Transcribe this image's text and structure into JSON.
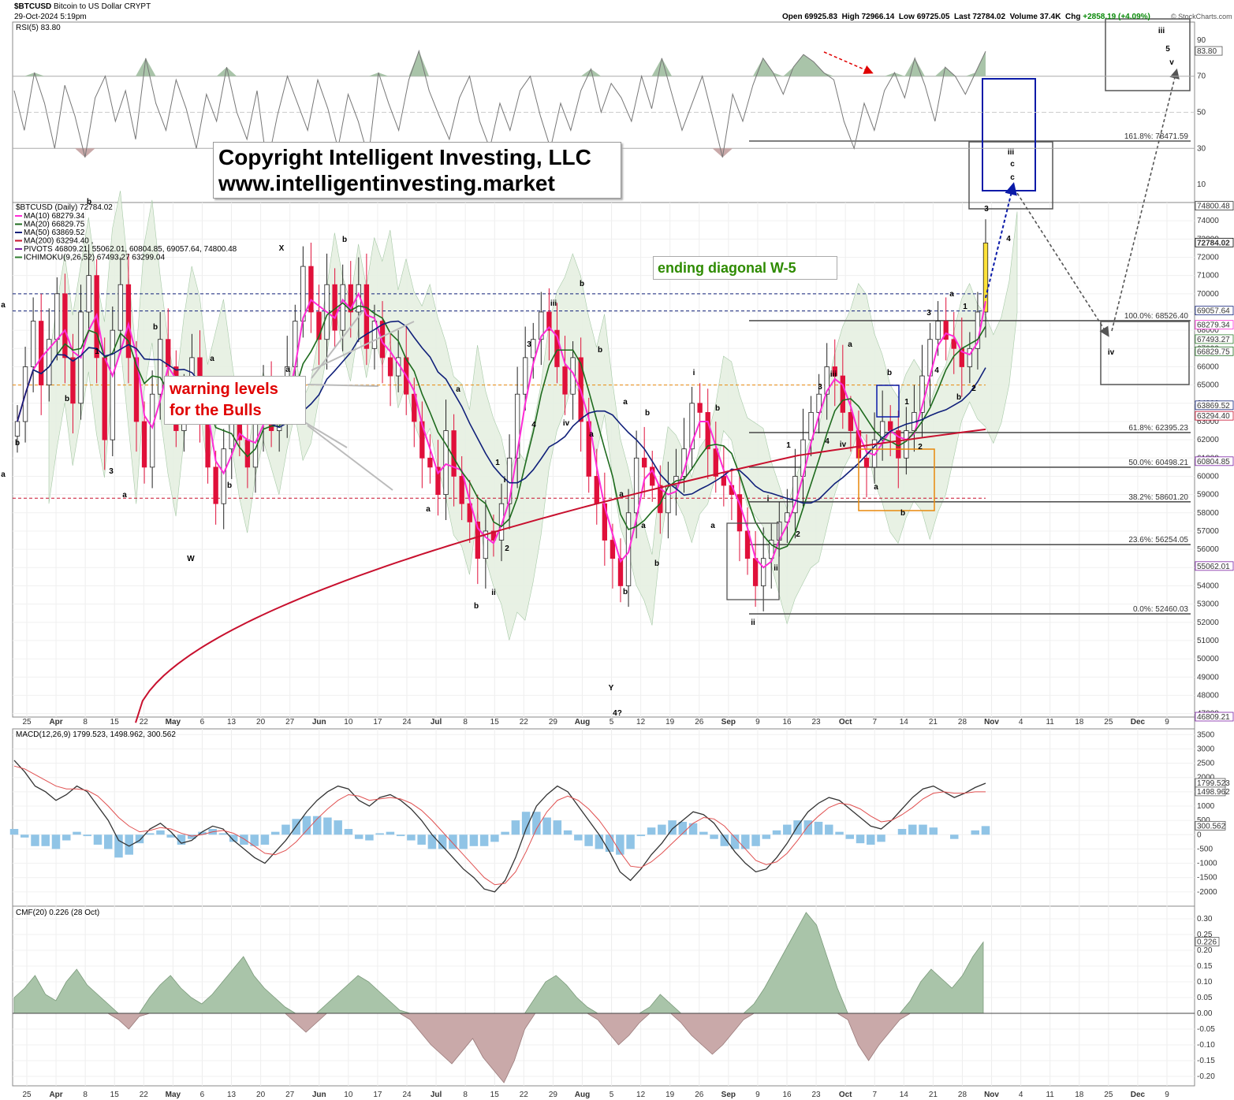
{
  "header": {
    "symbol": "$BTCUSD",
    "name": "Bitcoin to US Dollar",
    "exchange": "CRYPT",
    "date": "29-Oct-2024 5:19pm",
    "open_label": "Open",
    "open": "69925.83",
    "high_label": "High",
    "high": "72966.14",
    "low_label": "Low",
    "low": "69725.05",
    "last_label": "Last",
    "last": "72784.02",
    "volume_label": "Volume",
    "volume": "37.4K",
    "chg_label": "Chg",
    "chg": "+2858.19 (+4.09%)",
    "watermark": "© StockCharts.com"
  },
  "annotations": {
    "copyright_line1": "Copyright Intelligent Investing, LLC",
    "copyright_line2": "www.intelligentinvesting.market",
    "warning_line1": "warning levels",
    "warning_line2": "for the Bulls",
    "ending_diagonal": "ending diagonal W-5"
  },
  "colors": {
    "up_candle": "#ffffff",
    "down_candle": "#e0103a",
    "ma10": "#ff2bd6",
    "ma20": "#1e6b1e",
    "ma50": "#10207a",
    "ma200": "#c8102e",
    "rsi_line": "#777777",
    "macd_hist": "#90c4e6",
    "cmf_pos": "#a9c4a9",
    "cmf_neg": "#c9a9a9",
    "wave_orange": "#e8890c",
    "wave_blue": "#0a1aa8",
    "wave_lightblue": "#3a7bd5",
    "wave_green": "#2e8b00",
    "wave_red": "#e00000",
    "wave_gray": "#555555"
  },
  "chart_data": [
    {
      "type": "line",
      "panel": "RSI",
      "title": "RSI(5) 83.80",
      "y_ticks": [
        10,
        30,
        50,
        70,
        90
      ],
      "ylim": [
        0,
        100
      ],
      "last_value": 83.8,
      "series": [
        {
          "name": "RSI(5)",
          "values": [
            62,
            40,
            72,
            55,
            30,
            65,
            48,
            25,
            58,
            70,
            45,
            62,
            35,
            80,
            55,
            40,
            68,
            52,
            30,
            60,
            45,
            75,
            50,
            35,
            62,
            20,
            48,
            70,
            55,
            40,
            68,
            52,
            30,
            60,
            45,
            25,
            72,
            55,
            40,
            68,
            84,
            62,
            48,
            35,
            58,
            70,
            45,
            30,
            55,
            40,
            62,
            70,
            48,
            30,
            55,
            40,
            62,
            74,
            50,
            66,
            58,
            45,
            70,
            52,
            80,
            60,
            40,
            55,
            70,
            48,
            25,
            60,
            45,
            65,
            80,
            72,
            60,
            75,
            82,
            78,
            72,
            68,
            45,
            30,
            55,
            40,
            62,
            72,
            58,
            80,
            65,
            45,
            75,
            70,
            60,
            72,
            83.8
          ]
        }
      ]
    },
    {
      "type": "candlestick",
      "panel": "Price",
      "title": "$BTCUSD (Daily) 72784.02",
      "ylim": [
        46809.21,
        75000
      ],
      "y_ticks": [
        47000,
        48000,
        49000,
        50000,
        51000,
        52000,
        53000,
        54000,
        55000,
        56000,
        57000,
        58000,
        59000,
        60000,
        61000,
        62000,
        63000,
        64000,
        65000,
        66000,
        67000,
        68000,
        69000,
        70000,
        71000,
        72000,
        73000,
        74000
      ],
      "x_tick_labels": [
        "25",
        "Apr",
        "8",
        "15",
        "22",
        "May",
        "6",
        "13",
        "20",
        "27",
        "Jun",
        "10",
        "17",
        "24",
        "Jul",
        "8",
        "15",
        "22",
        "29",
        "Aug",
        "5",
        "12",
        "19",
        "26",
        "Sep",
        "9",
        "16",
        "23",
        "Oct",
        "7",
        "14",
        "21",
        "28",
        "Nov",
        "4",
        "11",
        "18",
        "25",
        "Dec",
        "9"
      ],
      "legend": [
        {
          "label": "MA(10) 68279.34",
          "color": "#ff2bd6"
        },
        {
          "label": "MA(20) 66829.75",
          "color": "#1e6b1e"
        },
        {
          "label": "MA(50) 63869.52",
          "color": "#10207a"
        },
        {
          "label": "MA(200) 63294.40 ,",
          "color": "#c8102e"
        },
        {
          "label": "PIVOTS 46809.21, 55062.01, 60804.85, 69057.64, 74800.48",
          "color": "#7a1fa2"
        },
        {
          "label": "ICHIMOKU(9,26,52) 67493.27 63299.04",
          "color": "#2e7d2e"
        }
      ],
      "close": [
        63000,
        66000,
        68500,
        65000,
        67500,
        70000,
        66500,
        64000,
        69000,
        71000,
        66500,
        62000,
        68000,
        70500,
        66500,
        63000,
        60500,
        64500,
        67500,
        66000,
        62500,
        64500,
        66500,
        63500,
        60500,
        58500,
        61500,
        63500,
        62000,
        60500,
        63000,
        65000,
        62500,
        63500,
        66000,
        68500,
        71500,
        69000,
        67500,
        70500,
        68000,
        70500,
        69000,
        70500,
        67000,
        68500,
        66500,
        65500,
        66500,
        64500,
        63000,
        61000,
        60500,
        59000,
        62500,
        60000,
        58500,
        57500,
        55500,
        57000,
        56500,
        58500,
        61000,
        64500,
        66500,
        67500,
        69000,
        68000,
        66000,
        64500,
        66500,
        63000,
        60000,
        58500,
        56500,
        55500,
        54000,
        58000,
        61000,
        60500,
        59500,
        58000,
        59500,
        60000,
        61500,
        64000,
        63500,
        61500,
        60000,
        59500,
        59000,
        57000,
        55500,
        54000,
        55500,
        56500,
        57500,
        58000,
        60000,
        62000,
        63500,
        64500,
        66000,
        65500,
        63500,
        62500,
        61000,
        60500,
        62000,
        63000,
        62500,
        61000,
        62500,
        63500,
        65500,
        67500,
        68500,
        67500,
        67000,
        66000,
        67000,
        69000,
        72784.02
      ],
      "ma_last": {
        "MA10": 68279.34,
        "MA20": 66829.75,
        "MA50": 63869.52,
        "MA200": 63294.4
      },
      "fib_levels": [
        {
          "label": "161.8%: 78471.59"
        },
        {
          "label": "100.0%: 68526.40"
        },
        {
          "label": "61.8%: 62395.23"
        },
        {
          "label": "50.0%: 60498.21"
        },
        {
          "label": "38.2%: 58601.20"
        },
        {
          "label": "23.6%: 56254.05"
        },
        {
          "label": "0.0%: 52460.03"
        }
      ],
      "right_price_labels": [
        "74800.48",
        "72784.02",
        "69057.64",
        "68279.34",
        "67493.27",
        "66829.75",
        "63869.52",
        "63294.40",
        "60804.85",
        "55062.01",
        "46809.21"
      ],
      "wave_labels": [
        {
          "text": "W"
        },
        {
          "text": "X"
        },
        {
          "text": "Y"
        },
        {
          "text": "4?"
        },
        {
          "text": "a"
        },
        {
          "text": "b"
        },
        {
          "text": "1"
        },
        {
          "text": "2"
        },
        {
          "text": "3"
        },
        {
          "text": "4"
        },
        {
          "text": "i"
        },
        {
          "text": "ii"
        },
        {
          "text": "iii"
        },
        {
          "text": "iv"
        },
        {
          "text": "c"
        },
        {
          "text": "v"
        },
        {
          "text": "5"
        }
      ]
    },
    {
      "type": "bar",
      "panel": "MACD",
      "title": "MACD(12,26,9) 1799.523, 1498.962, 300.562",
      "y_ticks": [
        -2000,
        -1500,
        -1000,
        -500,
        0,
        500,
        1000,
        1500,
        2000,
        2500,
        3000,
        3500
      ],
      "ylim": [
        -2500,
        3700
      ],
      "series": [
        {
          "name": "MACD",
          "last": 1799.523
        },
        {
          "name": "Signal",
          "last": 1498.962
        },
        {
          "name": "Histogram",
          "last": 300.562
        }
      ],
      "macd": [
        2600,
        2200,
        1700,
        1500,
        1200,
        1400,
        1700,
        1500,
        1000,
        500,
        -200,
        -400,
        -200,
        200,
        400,
        100,
        -300,
        -200,
        100,
        300,
        200,
        -200,
        -500,
        -800,
        -1000,
        -600,
        -200,
        300,
        800,
        1200,
        1500,
        1700,
        1600,
        1200,
        1000,
        1300,
        1400,
        1200,
        900,
        500,
        0,
        -400,
        -800,
        -1200,
        -1500,
        -1900,
        -2000,
        -1600,
        -800,
        200,
        1000,
        1400,
        1700,
        1500,
        1000,
        500,
        0,
        -600,
        -1300,
        -1600,
        -1200,
        -700,
        -300,
        200,
        500,
        800,
        700,
        400,
        -100,
        -600,
        -1000,
        -1300,
        -1200,
        -800,
        -300,
        300,
        800,
        1100,
        1300,
        1200,
        900,
        600,
        300,
        200,
        500,
        900,
        1300,
        1600,
        1700,
        1500,
        1300,
        1450,
        1650,
        1799.523
      ],
      "signal": [
        2400,
        2300,
        2100,
        1900,
        1700,
        1600,
        1600,
        1550,
        1350,
        1000,
        600,
        300,
        100,
        150,
        250,
        200,
        50,
        -50,
        0,
        100,
        150,
        50,
        -150,
        -400,
        -650,
        -700,
        -550,
        -250,
        150,
        550,
        900,
        1200,
        1400,
        1350,
        1200,
        1250,
        1300,
        1250,
        1100,
        850,
        500,
        100,
        -300,
        -700,
        -1100,
        -1500,
        -1750,
        -1700,
        -1300,
        -600,
        200,
        800,
        1200,
        1350,
        1200,
        900,
        500,
        0,
        -600,
        -1100,
        -1150,
        -950,
        -650,
        -300,
        50,
        400,
        600,
        550,
        300,
        -100,
        -500,
        -900,
        -1050,
        -950,
        -650,
        -200,
        300,
        650,
        950,
        1100,
        1050,
        900,
        650,
        450,
        500,
        700,
        950,
        1250,
        1450,
        1500,
        1450,
        1450,
        1500,
        1498.962
      ]
    },
    {
      "type": "area",
      "panel": "CMF",
      "title": "CMF(20) 0.226 (28 Oct)",
      "y_ticks": [
        -0.2,
        -0.15,
        -0.1,
        -0.05,
        0.0,
        0.05,
        0.1,
        0.15,
        0.2,
        0.25,
        0.3
      ],
      "ylim": [
        -0.23,
        0.34
      ],
      "last_value": 0.226,
      "values": [
        0.05,
        0.08,
        0.12,
        0.06,
        0.04,
        0.1,
        0.14,
        0.09,
        0.06,
        0.03,
        -0.02,
        -0.05,
        -0.01,
        0.05,
        0.09,
        0.12,
        0.08,
        0.05,
        0.03,
        0.06,
        0.1,
        0.14,
        0.18,
        0.12,
        0.08,
        0.05,
        0.02,
        -0.03,
        -0.06,
        -0.03,
        0.03,
        0.06,
        0.09,
        0.12,
        0.1,
        0.07,
        0.04,
        0.01,
        -0.02,
        -0.06,
        -0.1,
        -0.13,
        -0.16,
        -0.12,
        -0.08,
        -0.14,
        -0.18,
        -0.22,
        -0.15,
        -0.05,
        0.05,
        0.1,
        0.12,
        0.09,
        0.05,
        0.02,
        -0.02,
        -0.06,
        -0.1,
        -0.07,
        -0.03,
        0.02,
        0.06,
        0.03,
        -0.03,
        -0.07,
        -0.1,
        -0.13,
        -0.1,
        -0.06,
        -0.02,
        0.03,
        0.08,
        0.14,
        0.2,
        0.26,
        0.32,
        0.28,
        0.18,
        0.08,
        -0.02,
        -0.1,
        -0.15,
        -0.1,
        -0.06,
        -0.02,
        0.04,
        0.1,
        0.14,
        0.11,
        0.08,
        0.12,
        0.18,
        0.226
      ]
    }
  ]
}
